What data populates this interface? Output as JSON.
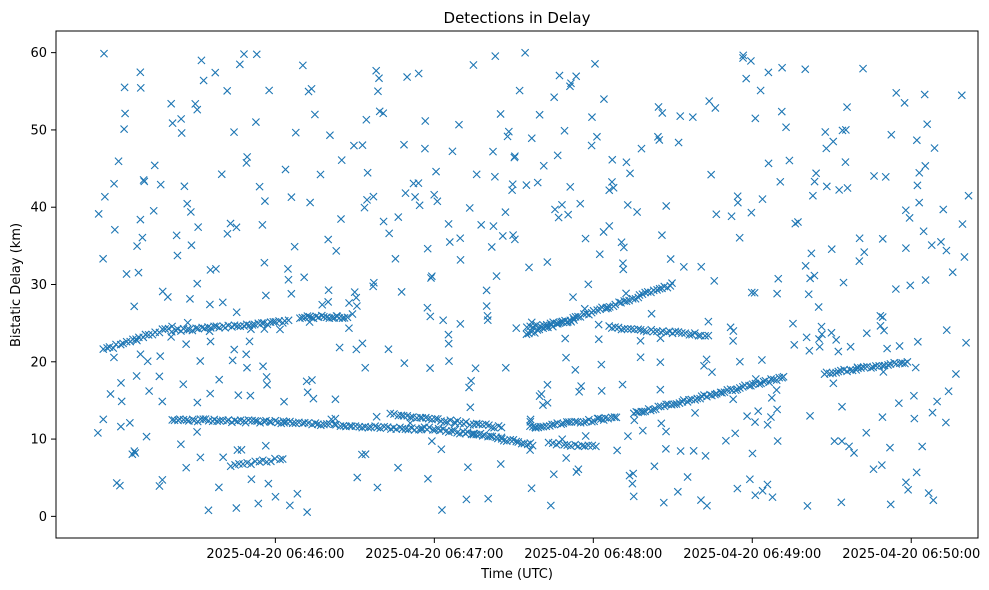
{
  "chart_data": {
    "type": "scatter",
    "title": "Detections in Delay",
    "xlabel": "Time (UTC)",
    "ylabel": "Bistatic Delay (km)",
    "marker": "x",
    "color": "#1f77b4",
    "x_unit": "minutes after 2025-04-20 06:45:00 UTC",
    "xlim": [
      -0.38,
      5.42
    ],
    "ylim": [
      -2.8,
      62.8
    ],
    "x_ticks": [
      {
        "value": 1,
        "label": "2025-04-20 06:46:00"
      },
      {
        "value": 2,
        "label": "2025-04-20 06:47:00"
      },
      {
        "value": 3,
        "label": "2025-04-20 06:48:00"
      },
      {
        "value": 4,
        "label": "2025-04-20 06:49:00"
      },
      {
        "value": 5,
        "label": "2025-04-20 06:50:00"
      }
    ],
    "y_ticks": [
      {
        "value": 0,
        "label": "0"
      },
      {
        "value": 10,
        "label": "10"
      },
      {
        "value": 20,
        "label": "20"
      },
      {
        "value": 30,
        "label": "30"
      },
      {
        "value": 40,
        "label": "40"
      },
      {
        "value": 50,
        "label": "50"
      },
      {
        "value": 60,
        "label": "60"
      }
    ],
    "tracks": [
      {
        "name": "track-a",
        "from": [
          -0.08,
          21.5
        ],
        "to": [
          0.35,
          24.5
        ],
        "n": 22
      },
      {
        "name": "track-b",
        "from": [
          0.35,
          24.0
        ],
        "to": [
          1.08,
          25.2
        ],
        "n": 40
      },
      {
        "name": "track-c",
        "from": [
          1.15,
          25.8
        ],
        "to": [
          1.45,
          25.8
        ],
        "n": 20
      },
      {
        "name": "track-d",
        "from": [
          0.35,
          12.5
        ],
        "to": [
          1.05,
          12.2
        ],
        "n": 40
      },
      {
        "name": "track-e",
        "from": [
          1.05,
          12.2
        ],
        "to": [
          1.92,
          11.2
        ],
        "n": 45
      },
      {
        "name": "track-f",
        "from": [
          1.92,
          11.5
        ],
        "to": [
          2.42,
          10.2
        ],
        "n": 30
      },
      {
        "name": "track-g",
        "from": [
          1.75,
          13.2
        ],
        "to": [
          2.42,
          11.5
        ],
        "n": 35
      },
      {
        "name": "track-h",
        "from": [
          2.42,
          10.0
        ],
        "to": [
          2.62,
          9.3
        ],
        "n": 12
      },
      {
        "name": "track-i",
        "from": [
          2.6,
          11.5
        ],
        "to": [
          3.15,
          12.8
        ],
        "n": 32
      },
      {
        "name": "track-j",
        "from": [
          2.72,
          9.5
        ],
        "to": [
          3.02,
          9.0
        ],
        "n": 14
      },
      {
        "name": "track-k",
        "from": [
          3.25,
          13.3
        ],
        "to": [
          4.2,
          18.0
        ],
        "n": 60
      },
      {
        "name": "track-l",
        "from": [
          4.45,
          18.5
        ],
        "to": [
          4.98,
          20.0
        ],
        "n": 30
      },
      {
        "name": "track-m",
        "from": [
          2.58,
          23.5
        ],
        "to": [
          3.5,
          30.0
        ],
        "n": 55
      },
      {
        "name": "track-n",
        "from": [
          2.58,
          24.5
        ],
        "to": [
          2.88,
          25.3
        ],
        "n": 15
      },
      {
        "name": "track-o",
        "from": [
          3.1,
          24.5
        ],
        "to": [
          3.72,
          23.4
        ],
        "n": 32
      },
      {
        "name": "track-p",
        "from": [
          0.72,
          6.5
        ],
        "to": [
          1.05,
          7.5
        ],
        "n": 14
      }
    ],
    "random_detections": {
      "count": 560,
      "x_range": [
        -0.12,
        5.37
      ],
      "y_range": [
        0.5,
        60.0
      ],
      "seed": 7
    },
    "grid": false,
    "legend": "none"
  }
}
